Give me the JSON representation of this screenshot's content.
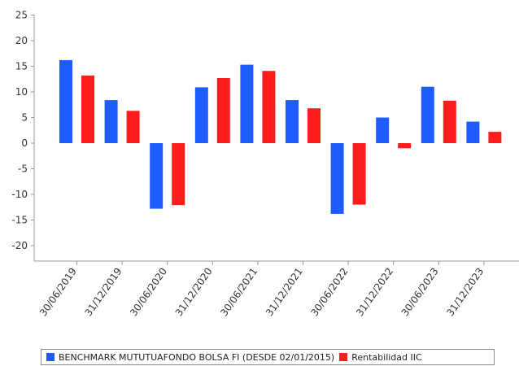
{
  "chart_data": {
    "type": "bar",
    "categories": [
      "30/06/2019",
      "31/12/2019",
      "30/06/2020",
      "31/12/2020",
      "30/06/2021",
      "31/12/2021",
      "30/06/2022",
      "31/12/2022",
      "30/06/2023",
      "31/12/2023"
    ],
    "series": [
      {
        "name": "BENCHMARK MUTUTUAFONDO BOLSA FI (DESDE 02/01/2015)",
        "color": "#1e5cff",
        "values": [
          16.2,
          8.4,
          -12.8,
          10.9,
          15.3,
          8.4,
          -13.8,
          5.0,
          11.0,
          4.2
        ]
      },
      {
        "name": "Rentabilidad IIC",
        "color": "#ff1c1c",
        "values": [
          13.2,
          6.3,
          -12.1,
          12.7,
          14.1,
          6.8,
          -12.0,
          -1.0,
          8.3,
          2.2
        ]
      }
    ],
    "yticks": [
      25,
      20,
      15,
      10,
      5,
      0,
      -5,
      -10,
      -15,
      -20
    ],
    "ylim": [
      -23,
      25
    ],
    "grid": false,
    "legend": "bottom"
  }
}
